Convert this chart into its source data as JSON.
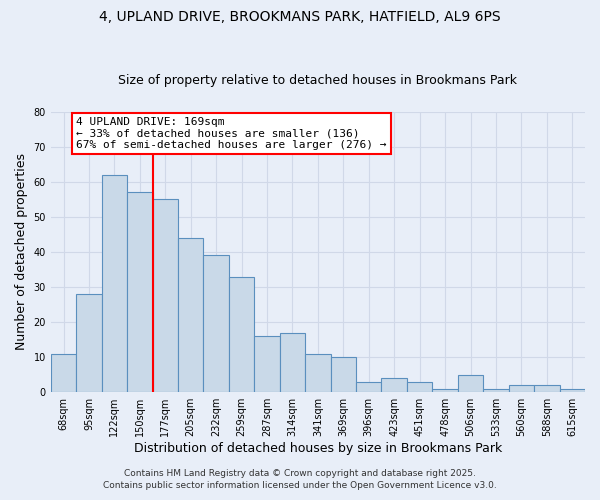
{
  "title": "4, UPLAND DRIVE, BROOKMANS PARK, HATFIELD, AL9 6PS",
  "subtitle": "Size of property relative to detached houses in Brookmans Park",
  "xlabel": "Distribution of detached houses by size in Brookmans Park",
  "ylabel": "Number of detached properties",
  "bar_labels": [
    "68sqm",
    "95sqm",
    "122sqm",
    "150sqm",
    "177sqm",
    "205sqm",
    "232sqm",
    "259sqm",
    "287sqm",
    "314sqm",
    "341sqm",
    "369sqm",
    "396sqm",
    "423sqm",
    "451sqm",
    "478sqm",
    "506sqm",
    "533sqm",
    "560sqm",
    "588sqm",
    "615sqm"
  ],
  "bar_values": [
    11,
    28,
    62,
    57,
    55,
    44,
    39,
    33,
    16,
    17,
    11,
    10,
    3,
    4,
    3,
    1,
    5,
    1,
    2,
    2,
    1
  ],
  "bar_color": "#c9d9e8",
  "bar_edge_color": "#5a8fbe",
  "bar_linewidth": 0.8,
  "vline_x": 3.5,
  "vline_color": "red",
  "vline_linewidth": 1.5,
  "annotation_text": "4 UPLAND DRIVE: 169sqm\n← 33% of detached houses are smaller (136)\n67% of semi-detached houses are larger (276) →",
  "annotation_box_color": "white",
  "annotation_box_edge_color": "red",
  "ylim": [
    0,
    80
  ],
  "yticks": [
    0,
    10,
    20,
    30,
    40,
    50,
    60,
    70,
    80
  ],
  "grid_color": "#d0d8e8",
  "background_color": "#e8eef8",
  "footer_line1": "Contains HM Land Registry data © Crown copyright and database right 2025.",
  "footer_line2": "Contains public sector information licensed under the Open Government Licence v3.0.",
  "title_fontsize": 10,
  "subtitle_fontsize": 9,
  "tick_fontsize": 7,
  "axis_label_fontsize": 9,
  "footer_fontsize": 6.5
}
